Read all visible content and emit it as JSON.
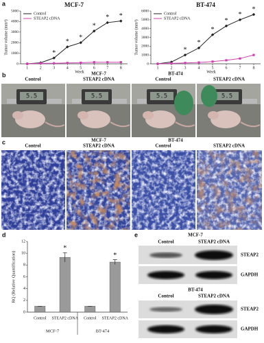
{
  "panel_labels": [
    "a",
    "b",
    "c",
    "d",
    "e"
  ],
  "chart_data": [
    {
      "type": "line",
      "title": "MCF-7",
      "xlabel": "Week",
      "ylabel": "Tumor volume (mm³)",
      "x": [
        1,
        2,
        3,
        4,
        5,
        6,
        7,
        8
      ],
      "xlim": [
        0.5,
        8.5
      ],
      "xticks": [
        1,
        2,
        3,
        4,
        5,
        6,
        7,
        8
      ],
      "ylim": [
        0,
        5000
      ],
      "yticks": [
        0,
        1000,
        2000,
        3000,
        4000,
        5000
      ],
      "series": [
        {
          "name": "Control",
          "color": "#222222",
          "values": [
            0,
            100,
            550,
            1600,
            2000,
            3100,
            3900,
            4050
          ]
        },
        {
          "name": "STEAP2 cDNA",
          "color": "#d040b0",
          "values": [
            0,
            50,
            50,
            80,
            100,
            150,
            150,
            150
          ]
        }
      ],
      "annotations": [
        {
          "text": "*",
          "x": 3
        },
        {
          "text": "*",
          "x": 4
        },
        {
          "text": "*",
          "x": 5
        },
        {
          "text": "*",
          "x": 6
        },
        {
          "text": "*",
          "x": 7
        },
        {
          "text": "*",
          "x": 8
        }
      ]
    },
    {
      "type": "line",
      "title": "BT-474",
      "xlabel": "Week",
      "ylabel": "Tumor volume (mm³)",
      "x": [
        1,
        2,
        3,
        4,
        5,
        6,
        7,
        8
      ],
      "xlim": [
        0.5,
        8.5
      ],
      "xticks": [
        1,
        2,
        3,
        4,
        5,
        6,
        7,
        8
      ],
      "ylim": [
        0,
        6000
      ],
      "yticks": [
        0,
        1000,
        2000,
        3000,
        4000,
        5000,
        6000
      ],
      "series": [
        {
          "name": "Control",
          "color": "#222222",
          "values": [
            0,
            200,
            1000,
            1800,
            3300,
            4300,
            5000,
            5600
          ]
        },
        {
          "name": "STEAP2 cDNA",
          "color": "#d040b0",
          "values": [
            0,
            50,
            100,
            150,
            250,
            400,
            600,
            1000
          ]
        }
      ],
      "annotations": [
        {
          "text": "*",
          "x": 3
        },
        {
          "text": "*",
          "x": 4
        },
        {
          "text": "*",
          "x": 5
        },
        {
          "text": "*",
          "x": 6
        },
        {
          "text": "*",
          "x": 7
        },
        {
          "text": "*",
          "x": 8
        }
      ]
    },
    {
      "type": "bar",
      "ylabel": "RQ (Relative Quantification)",
      "categories": [
        "Control",
        "STEAP2 cDNA",
        "Control",
        "STEAP2 cDNA"
      ],
      "groups": [
        "MCF-7",
        "BT-474"
      ],
      "values": [
        1,
        9.3,
        1,
        8.5
      ],
      "errors": [
        0,
        0.8,
        0,
        0.4
      ],
      "color": "#9a9a9a",
      "ylim": [
        0,
        12
      ],
      "yticks": [
        0,
        2,
        4,
        6,
        8,
        10,
        12
      ],
      "annotations": [
        {
          "text": "*",
          "index": 1
        },
        {
          "text": "*",
          "index": 3
        }
      ]
    }
  ],
  "panel_b": {
    "groups": [
      {
        "name": "MCF-7",
        "columns": [
          "Control",
          "STEAP2 cDNA"
        ]
      },
      {
        "name": "BT-474",
        "columns": [
          "Control",
          "STEAP2 cDNA"
        ]
      }
    ]
  },
  "panel_c": {
    "groups": [
      {
        "name": "MCF-7",
        "columns": [
          "Control",
          "STEAP2 cDNA"
        ]
      },
      {
        "name": "BT-474",
        "columns": [
          "Control",
          "STEAP2 cDNA"
        ]
      }
    ]
  },
  "panel_e": {
    "blots": [
      {
        "cell_line": "MCF-7",
        "columns": [
          "Control",
          "STEAP2 cDNA"
        ],
        "rows": [
          "STEAP2",
          "GAPDH"
        ]
      },
      {
        "cell_line": "BT-474",
        "columns": [
          "Control",
          "STEAP2 cDNA"
        ],
        "rows": [
          "STEAP2",
          "GAPDH"
        ]
      }
    ]
  }
}
